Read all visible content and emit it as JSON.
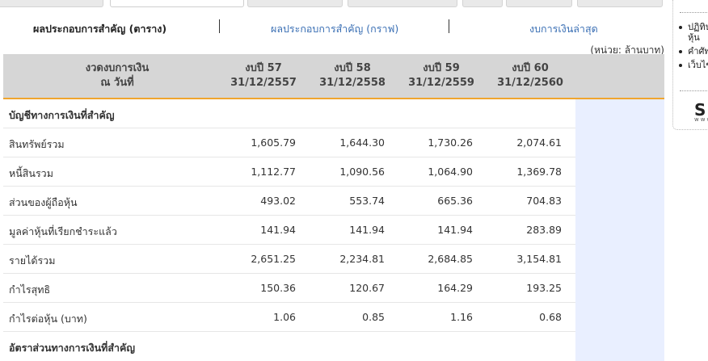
{
  "nav": {
    "tab_active": "ผลประกอบการสำคัญ (ตาราง)",
    "tab_graph": "ผลประกอบการสำคัญ (กราฟ)",
    "tab_latest": "งบการเงินล่าสุด"
  },
  "unit_note": "(หน่วย: ล้านบาท)",
  "table": {
    "header_label_line1": "งวดงบการเงิน",
    "header_label_line2": "ณ วันที่",
    "columns": [
      {
        "line1": "งบปี 57",
        "line2": "31/12/2557"
      },
      {
        "line1": "งบปี 58",
        "line2": "31/12/2558"
      },
      {
        "line1": "งบปี 59",
        "line2": "31/12/2559"
      },
      {
        "line1": "งบปี 60",
        "line2": "31/12/2560"
      }
    ],
    "section1": "บัญชีทางการเงินที่สำคัญ",
    "rows": [
      {
        "label": "สินทรัพย์รวม",
        "values": [
          "1,605.79",
          "1,644.30",
          "1,730.26",
          "2,074.61"
        ]
      },
      {
        "label": "หนี้สินรวม",
        "values": [
          "1,112.77",
          "1,090.56",
          "1,064.90",
          "1,369.78"
        ]
      },
      {
        "label": "ส่วนของผู้ถือหุ้น",
        "values": [
          "493.02",
          "553.74",
          "665.36",
          "704.83"
        ]
      },
      {
        "label": "มูลค่าหุ้นที่เรียกชำระแล้ว",
        "values": [
          "141.94",
          "141.94",
          "141.94",
          "283.89"
        ]
      },
      {
        "label": "รายได้รวม",
        "values": [
          "2,651.25",
          "2,234.81",
          "2,684.85",
          "3,154.81"
        ]
      },
      {
        "label": "กำไรสุทธิ",
        "values": [
          "150.36",
          "120.67",
          "164.29",
          "193.25"
        ]
      },
      {
        "label": "กำไรต่อหุ้น (บาท)",
        "values": [
          "1.06",
          "0.85",
          "1.16",
          "0.68"
        ]
      }
    ],
    "section2": "อัตราส่วนทางการเงินที่สำคัญ"
  },
  "sidebar": {
    "items": [
      "ปฏิทิน หุ้น",
      "คำศัพ",
      "เว็บไซ"
    ],
    "logo_text": "SE",
    "logo_sub": "www"
  },
  "colors": {
    "header_bg": "#d6d6d6",
    "header_underline": "#f0a52e",
    "highlight_col": "#e9efff",
    "link": "#3a6fb4"
  }
}
